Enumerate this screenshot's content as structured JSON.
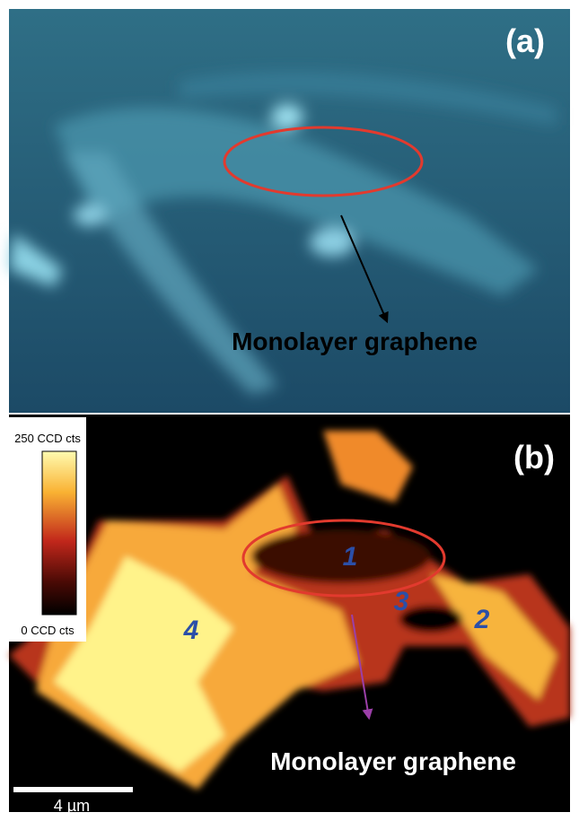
{
  "panels": [
    {
      "label": "(a)",
      "annotation": "Monolayer graphene"
    },
    {
      "label": "(b)",
      "annotation": "Monolayer graphene",
      "colorbar": {
        "max_label": "250 CCD cts",
        "min_label": "0 CCD cts"
      },
      "region_labels": [
        "1",
        "3",
        "2",
        "4"
      ],
      "scale_bar": "4 µm"
    }
  ]
}
